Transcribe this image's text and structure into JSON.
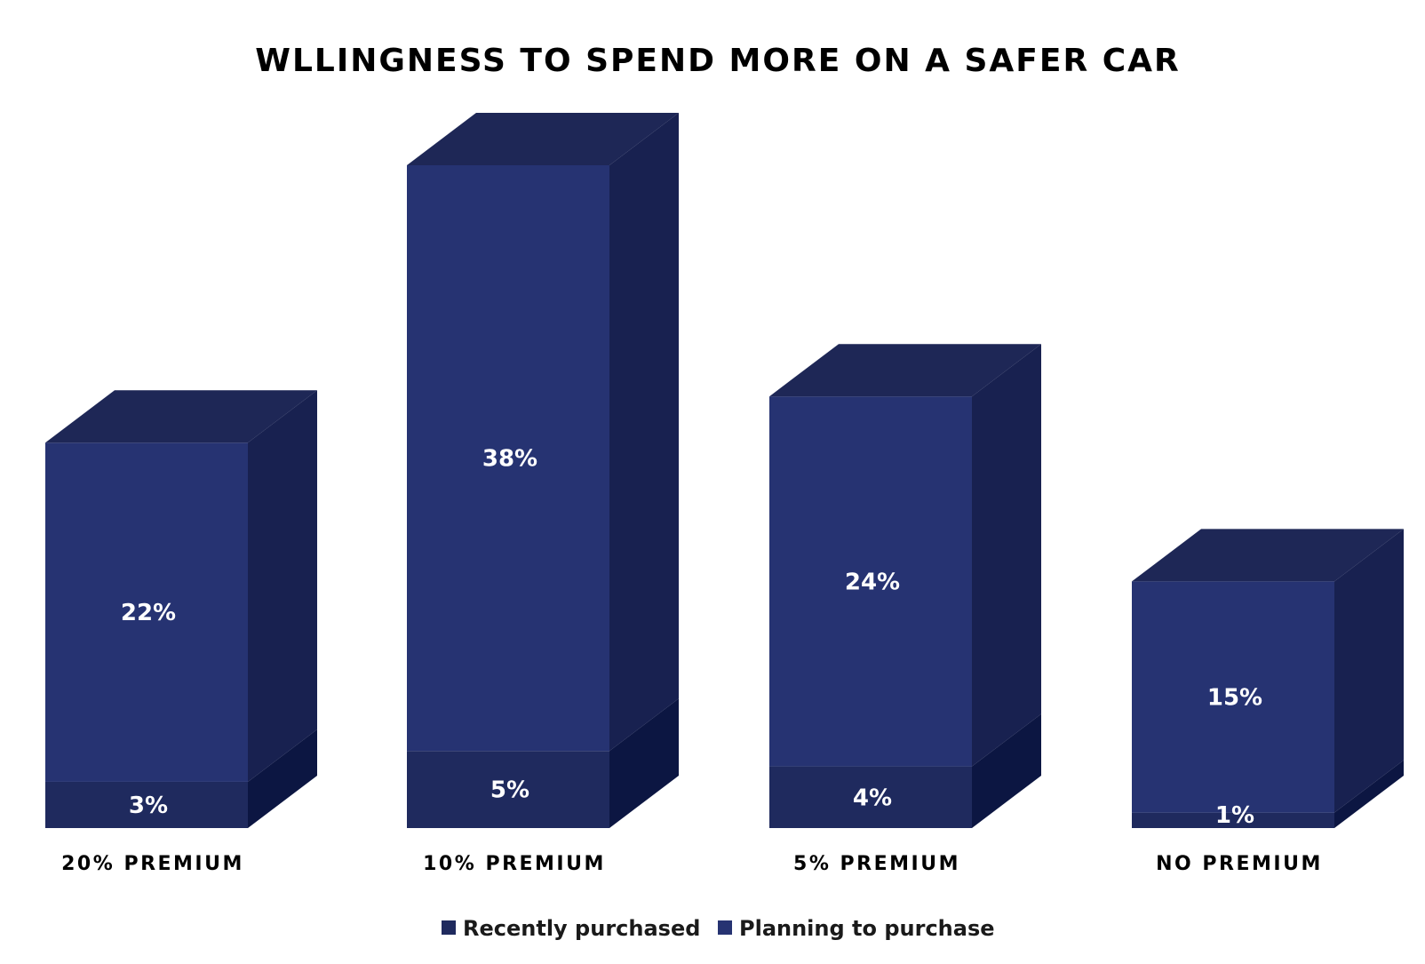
{
  "chart_data": {
    "type": "bar",
    "stacked": true,
    "three_d": true,
    "title": "WLLINGNESS TO SPEND MORE ON A SAFER CAR",
    "categories": [
      "20% PREMIUM",
      "10% PREMIUM",
      "5% PREMIUM",
      "NO PREMIUM"
    ],
    "series": [
      {
        "name": "Recently purchased",
        "values": [
          3,
          5,
          4,
          1
        ],
        "labels": [
          "3%",
          "5%",
          "4%",
          "1%"
        ],
        "color": "#1f2a5e"
      },
      {
        "name": "Planning to purchase",
        "values": [
          22,
          38,
          24,
          15
        ],
        "labels": [
          "22%",
          "38%",
          "24%",
          "15%"
        ],
        "color": "#263372"
      }
    ],
    "ylim": [
      0,
      43
    ],
    "grid": false,
    "legend_position": "bottom"
  }
}
